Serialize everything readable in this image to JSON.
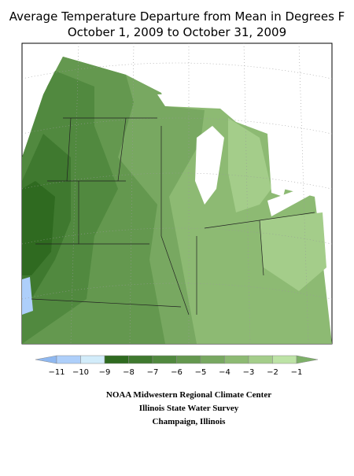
{
  "header": {
    "title": "Average Temperature Departure from Mean in Degrees F",
    "subtitle": "October 1, 2009 to October 31, 2009"
  },
  "legend": {
    "labels": [
      "−11",
      "−10",
      "−9",
      "−8",
      "−7",
      "−6",
      "−5",
      "−4",
      "−3",
      "−2",
      "−1"
    ],
    "colors": [
      "#8fb8f0",
      "#aecffa",
      "#d2ecfa",
      "#2f6a20",
      "#3f792f",
      "#51893f",
      "#64984f",
      "#78a861",
      "#8dba73",
      "#a4cd8a",
      "#bde3a6",
      "#7db068"
    ]
  },
  "footer": {
    "lines": [
      "NOAA Midwestern Regional Climate Center",
      "Illinois State Water Survey",
      "Champaign, Illinois"
    ]
  }
}
